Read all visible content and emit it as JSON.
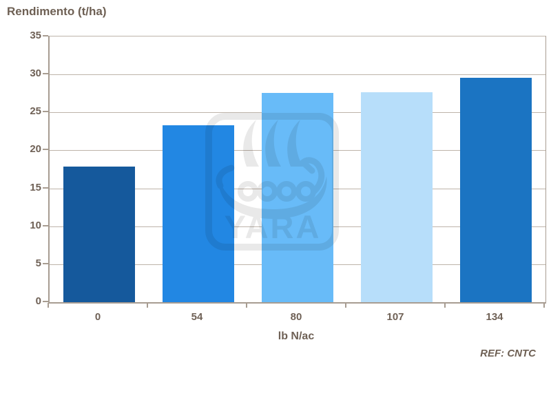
{
  "title": "Rendimento (t/ha)",
  "footer": {
    "ref_label": "REF: CNTC"
  },
  "watermark": {
    "text": "YARA",
    "color": "#e9e9e9"
  },
  "colors": {
    "text": "#6f6156",
    "title_text": "#6e6054",
    "axis_line": "#a79c91",
    "gridline": "#bdb3a9",
    "background": "#ffffff"
  },
  "chart_data": {
    "type": "bar",
    "title": "Rendimento (t/ha)",
    "xlabel": "lb N/ac",
    "ylabel": "",
    "categories": [
      "0",
      "54",
      "80",
      "107",
      "134"
    ],
    "values": [
      17.9,
      23.3,
      27.6,
      27.7,
      29.6
    ],
    "bar_colors": [
      "#15599c",
      "#2287e3",
      "#68bbf8",
      "#b7defa",
      "#1b74c2"
    ],
    "ylim": [
      0,
      35
    ],
    "yticks": [
      0,
      5,
      10,
      15,
      20,
      25,
      30,
      35
    ],
    "grid": "horizontal",
    "legend": "none",
    "annotation": "REF: CNTC"
  }
}
